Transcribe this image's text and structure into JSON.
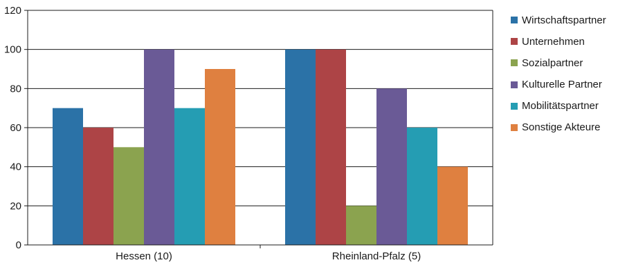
{
  "chart_data": {
    "type": "bar",
    "categories": [
      "Hessen (10)",
      "Rheinland-Pfalz (5)"
    ],
    "series": [
      {
        "name": "Wirtschaftspartner",
        "color": "#2b72a7",
        "values": [
          70,
          100
        ]
      },
      {
        "name": "Unternehmen",
        "color": "#ad4446",
        "values": [
          60,
          100
        ]
      },
      {
        "name": "Sozialpartner",
        "color": "#8ba34f",
        "values": [
          50,
          20
        ]
      },
      {
        "name": "Kulturelle Partner",
        "color": "#6a5a96",
        "values": [
          100,
          80
        ]
      },
      {
        "name": "Mobilitätspartner",
        "color": "#259db3",
        "values": [
          70,
          60
        ]
      },
      {
        "name": "Sonstige Akteure",
        "color": "#df8040",
        "values": [
          90,
          40
        ]
      }
    ],
    "title": "",
    "xlabel": "",
    "ylabel": "",
    "ylim": [
      0,
      120
    ],
    "yticks": [
      "0",
      "20",
      "40",
      "60",
      "80",
      "100",
      "120"
    ],
    "grid": true,
    "legend_position": "right"
  }
}
